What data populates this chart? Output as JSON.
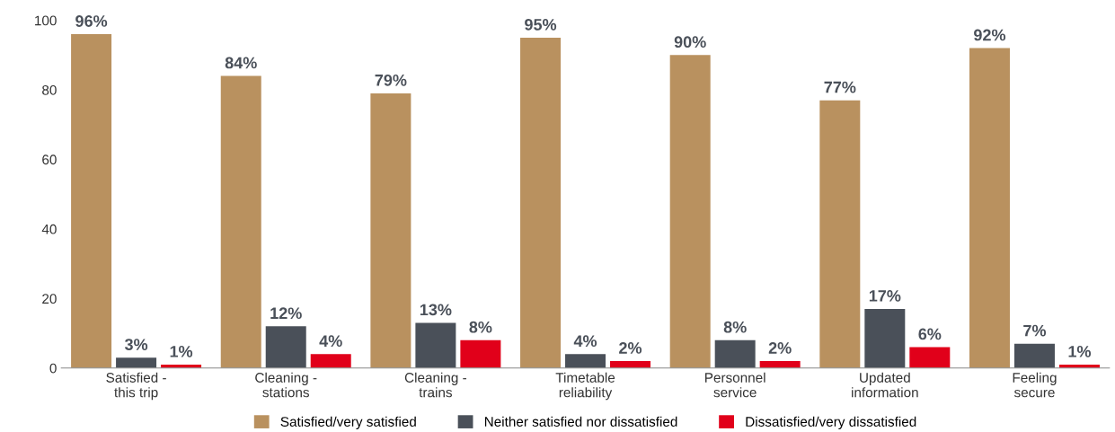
{
  "chart_data": {
    "type": "bar",
    "categories": [
      "Satisfied -\nthis trip",
      "Cleaning -\nstations",
      "Cleaning -\ntrains",
      "Timetable\nreliability",
      "Personnel\nservice",
      "Updated\ninformation",
      "Feeling\nsecure"
    ],
    "series": [
      {
        "name": "Satisfied/very satisfied",
        "color": "#b9915f",
        "values": [
          96,
          84,
          79,
          95,
          90,
          77,
          92
        ],
        "value_labels": [
          "96%",
          "84%",
          "79%",
          "95%",
          "90%",
          "77%",
          "92%"
        ]
      },
      {
        "name": "Neither satisfied nor dissatisfied",
        "color": "#4a5059",
        "values": [
          3,
          12,
          13,
          4,
          8,
          17,
          7
        ],
        "value_labels": [
          "3%",
          "12%",
          "13%",
          "4%",
          "8%",
          "17%",
          "7%"
        ]
      },
      {
        "name": "Dissatisfied/very dissatisfied",
        "color": "#e1001a",
        "values": [
          1,
          4,
          8,
          2,
          2,
          6,
          1
        ],
        "value_labels": [
          "1%",
          "4%",
          "8%",
          "2%",
          "2%",
          "6%",
          "1%"
        ]
      }
    ],
    "ylim": [
      0,
      100
    ],
    "yticks": [
      0,
      20,
      40,
      60,
      80,
      100
    ],
    "grid": false,
    "legend": "bottom"
  }
}
